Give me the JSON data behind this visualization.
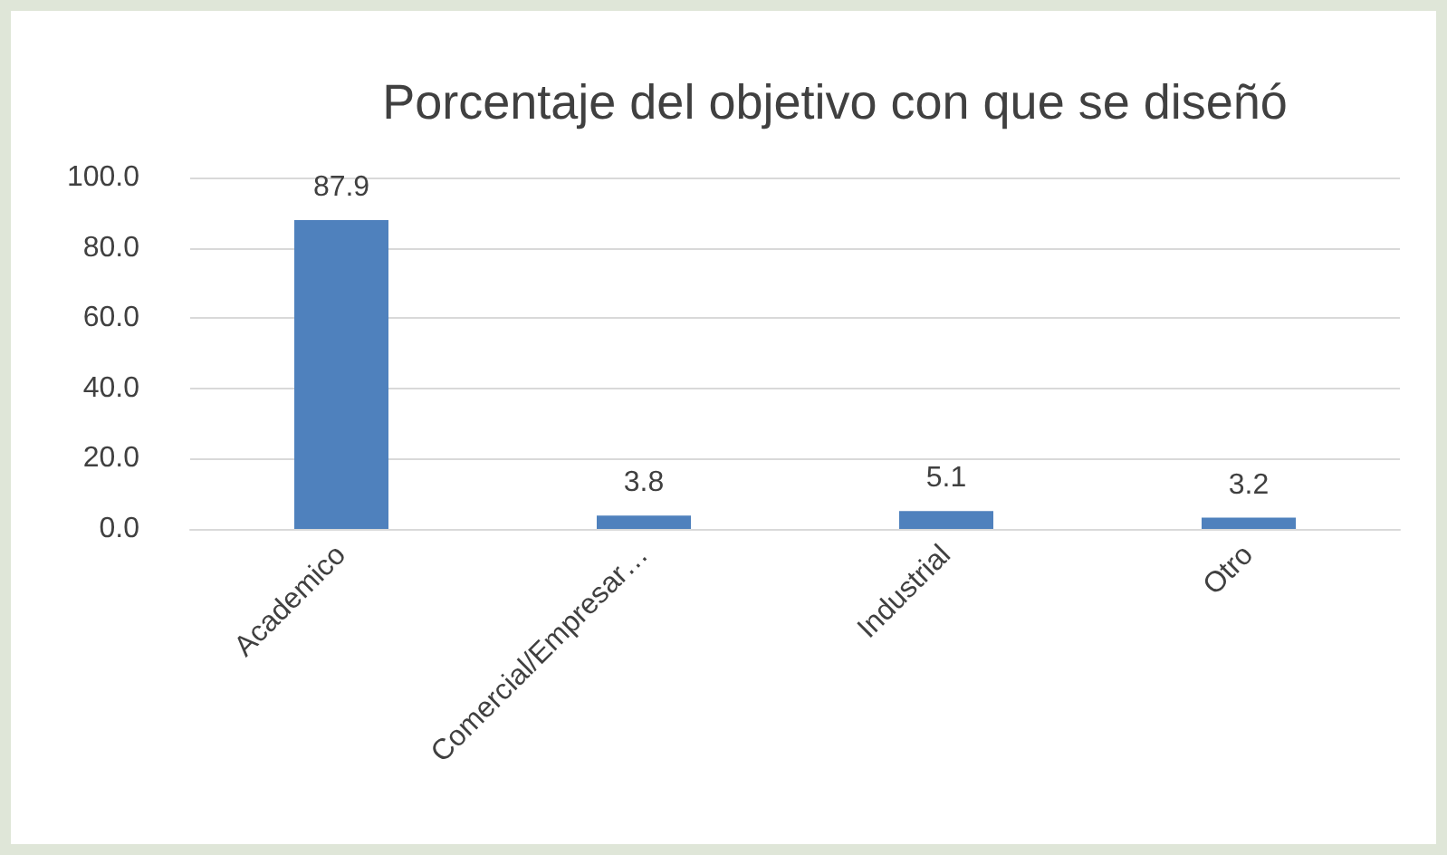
{
  "chart_data": {
    "type": "bar",
    "title": "Porcentaje del objetivo con que se diseñó",
    "categories": [
      "Academico",
      "Comercial/Empresar…",
      "Industrial",
      "Otro"
    ],
    "values": [
      87.9,
      3.8,
      5.1,
      3.2
    ],
    "color": "#4f81bd",
    "ylim": [
      0,
      100
    ],
    "yticks": [
      {
        "value": 0,
        "label": "0.0"
      },
      {
        "value": 20,
        "label": "20.0"
      },
      {
        "value": 40,
        "label": "40.0"
      },
      {
        "value": 60,
        "label": "60.0"
      },
      {
        "value": 80,
        "label": "80.0"
      },
      {
        "value": 100,
        "label": "100.0"
      }
    ],
    "grid": true,
    "data_labels": true
  }
}
